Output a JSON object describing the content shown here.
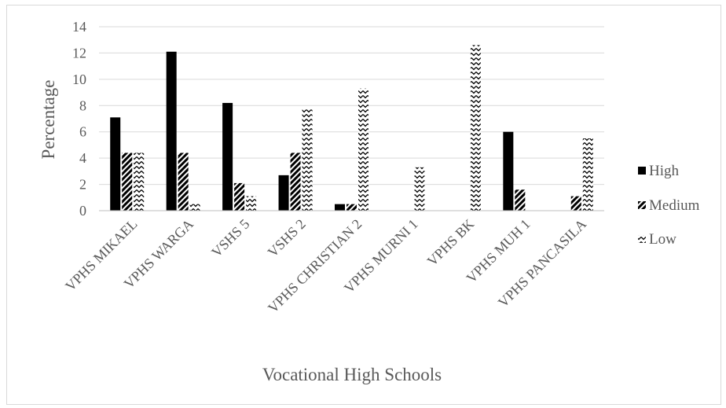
{
  "chart_data": {
    "type": "bar",
    "title": "",
    "xlabel": "Vocational High Schools",
    "ylabel": "Percentage",
    "ylim": [
      0,
      14
    ],
    "yticks": [
      "0",
      "2",
      "4",
      "6",
      "8",
      "10",
      "12",
      "14"
    ],
    "grid": true,
    "legend_position": "right",
    "categories": [
      "VPHS MIKAEL",
      "VPHS WARGA",
      "VSHS 5",
      "VSHS 2",
      "VPHS CHRISTIAN 2",
      "VPHS MURNI 1",
      "VPHS BK",
      "VPHS MUH 1",
      "VPHS PANCASILA"
    ],
    "series": [
      {
        "name": "High",
        "pattern": "solid",
        "color": "#000000",
        "values": [
          7.1,
          12.1,
          8.2,
          2.7,
          0.5,
          0,
          0,
          6.0,
          0
        ]
      },
      {
        "name": "Medium",
        "pattern": "diagonal",
        "color": "#000000",
        "values": [
          4.4,
          4.4,
          2.1,
          4.4,
          0.5,
          0,
          0,
          1.6,
          1.1
        ]
      },
      {
        "name": "Low",
        "pattern": "zigzag",
        "color": "#000000",
        "values": [
          4.4,
          0.5,
          1.1,
          7.7,
          9.3,
          3.3,
          12.6,
          0,
          5.5
        ]
      }
    ],
    "gridline_color": "#d9d9d9"
  }
}
